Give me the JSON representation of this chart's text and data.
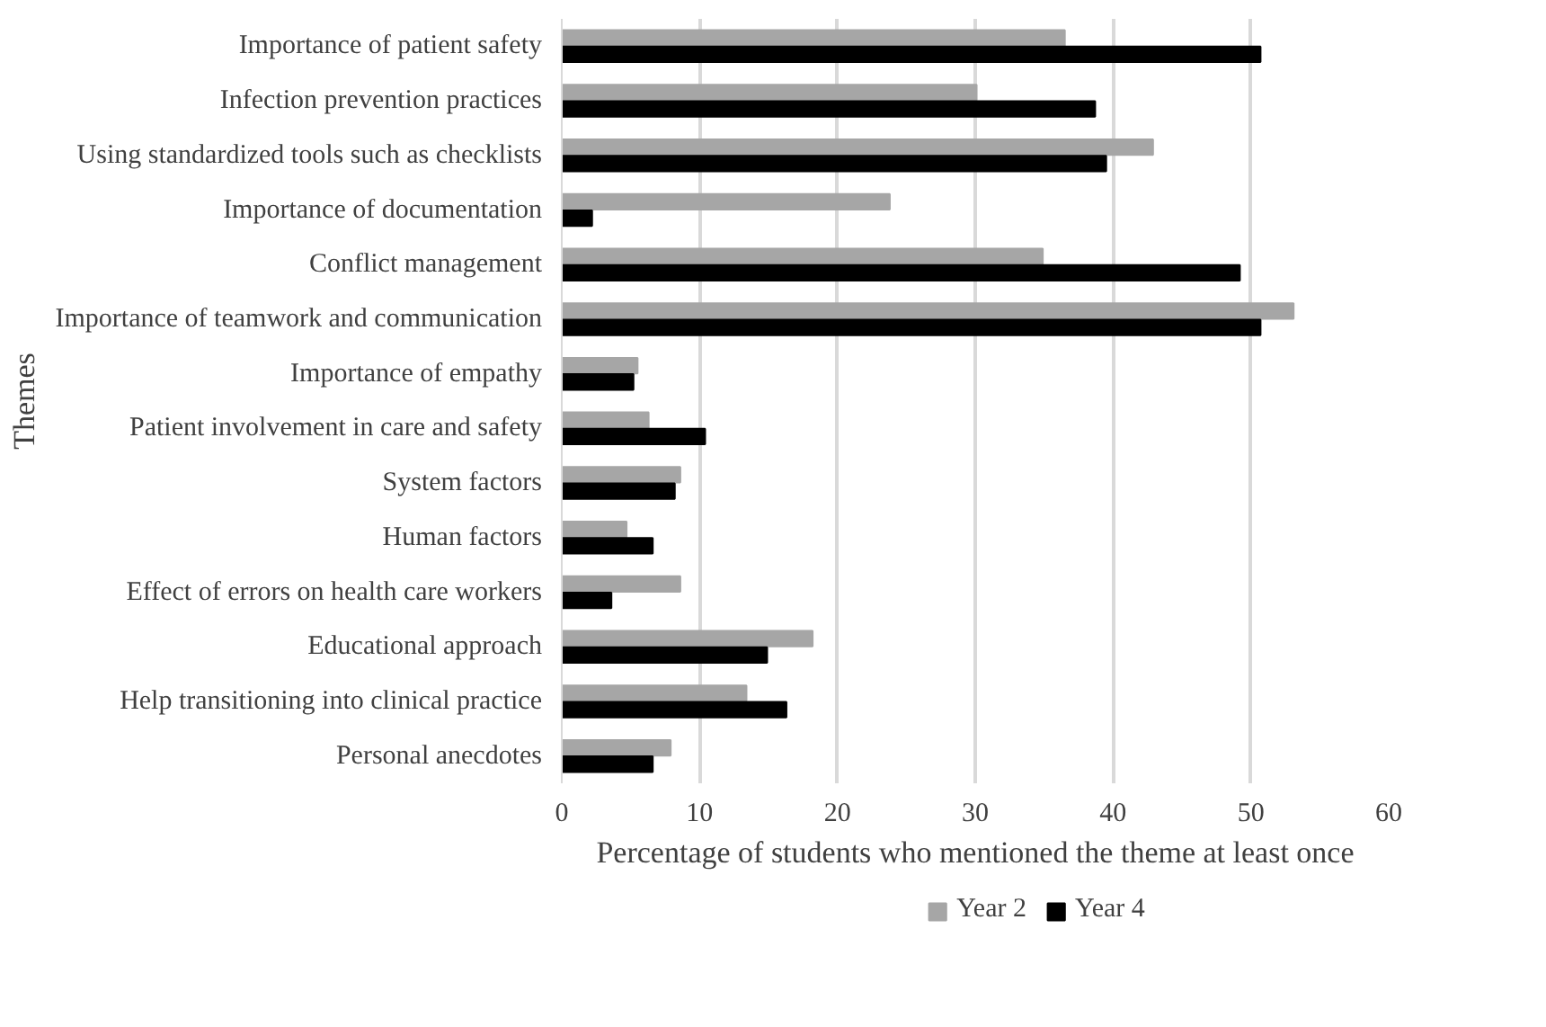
{
  "chart_data": {
    "type": "bar",
    "orientation": "horizontal",
    "xlabel": "Percentage of students who mentioned the theme at least once",
    "ylabel": "Themes",
    "categories": [
      "Importance of patient safety",
      "Infection prevention practices",
      "Using standardized tools such as checklists",
      "Importance of documentation",
      "Conflict management",
      "Importance of teamwork and communication",
      "Importance of empathy",
      "Patient involvement in care and safety",
      "System factors",
      "Human factors",
      "Effect of errors on health care workers",
      "Educational approach",
      "Help transitioning into clinical practice",
      "Personal anecdotes"
    ],
    "series": [
      {
        "name": "Year 2",
        "color": "#a6a6a6",
        "values": [
          36.5,
          30.1,
          42.9,
          23.8,
          34.9,
          53.1,
          5.5,
          6.3,
          8.6,
          4.7,
          8.6,
          18.2,
          13.4,
          7.9
        ]
      },
      {
        "name": "Year 4",
        "color": "#000000",
        "values": [
          50.7,
          38.7,
          39.5,
          2.2,
          49.2,
          50.7,
          5.2,
          10.4,
          8.2,
          6.6,
          3.6,
          14.9,
          16.3,
          6.6
        ]
      }
    ],
    "xlim": [
      0,
      60
    ],
    "xticks": [
      0,
      10,
      20,
      30,
      40,
      50,
      60
    ],
    "grid": "x",
    "legend": "bottom"
  }
}
